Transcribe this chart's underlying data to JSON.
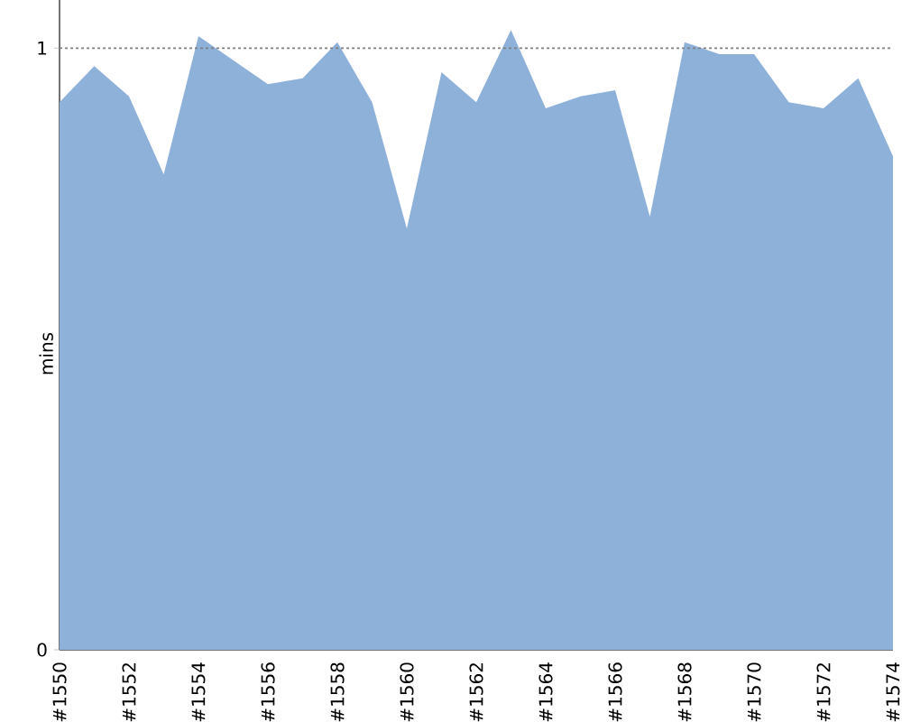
{
  "chart_data": {
    "type": "area",
    "ylabel": "mins",
    "categories": [
      "#1550",
      null,
      "#1552",
      null,
      "#1554",
      null,
      "#1556",
      null,
      "#1558",
      null,
      "#1560",
      null,
      "#1562",
      null,
      "#1564",
      null,
      "#1566",
      null,
      "#1568",
      null,
      "#1570",
      null,
      "#1572",
      null,
      "#1574"
    ],
    "values": [
      0.91,
      0.97,
      0.92,
      0.79,
      1.02,
      0.98,
      0.94,
      0.95,
      1.01,
      0.91,
      0.7,
      0.96,
      0.91,
      1.03,
      0.9,
      0.92,
      0.93,
      0.72,
      1.01,
      0.99,
      0.99,
      0.91,
      0.9,
      0.95,
      0.82
    ],
    "color": "#8eb1da",
    "ylim": [
      0,
      1.08
    ],
    "yticks": [
      0,
      1
    ],
    "ref_lines": [
      {
        "axis": "y",
        "value": 1,
        "color": "#808080",
        "line_style": "dotted"
      }
    ]
  }
}
